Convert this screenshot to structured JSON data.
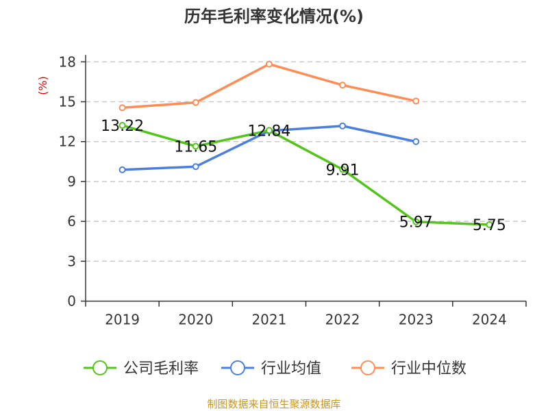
{
  "chart_data": {
    "type": "line",
    "title": "历年毛利率变化情况(%)",
    "ylabel": "(%)",
    "xlabel": "",
    "categories": [
      "2019",
      "2020",
      "2021",
      "2022",
      "2023",
      "2024"
    ],
    "ylim": [
      0,
      18
    ],
    "yticks": [
      0,
      3,
      6,
      9,
      12,
      15,
      18
    ],
    "grid": true,
    "legend_position": "bottom",
    "series": [
      {
        "name": "公司毛利率",
        "color": "#52c41a",
        "values": [
          13.22,
          11.65,
          12.84,
          9.91,
          5.97,
          5.75
        ],
        "labels": [
          "13.22",
          "11.65",
          "12.84",
          "9.91",
          "5.97",
          "5.75"
        ]
      },
      {
        "name": "行业均值",
        "color": "#4a7fe0",
        "values": [
          9.88,
          10.12,
          12.81,
          13.18,
          12.0,
          null
        ]
      },
      {
        "name": "行业中位数",
        "color": "#ff8c55",
        "values": [
          14.55,
          14.94,
          17.83,
          16.25,
          15.05,
          null
        ]
      }
    ]
  },
  "source": "制图数据来自恒生聚源数据库"
}
